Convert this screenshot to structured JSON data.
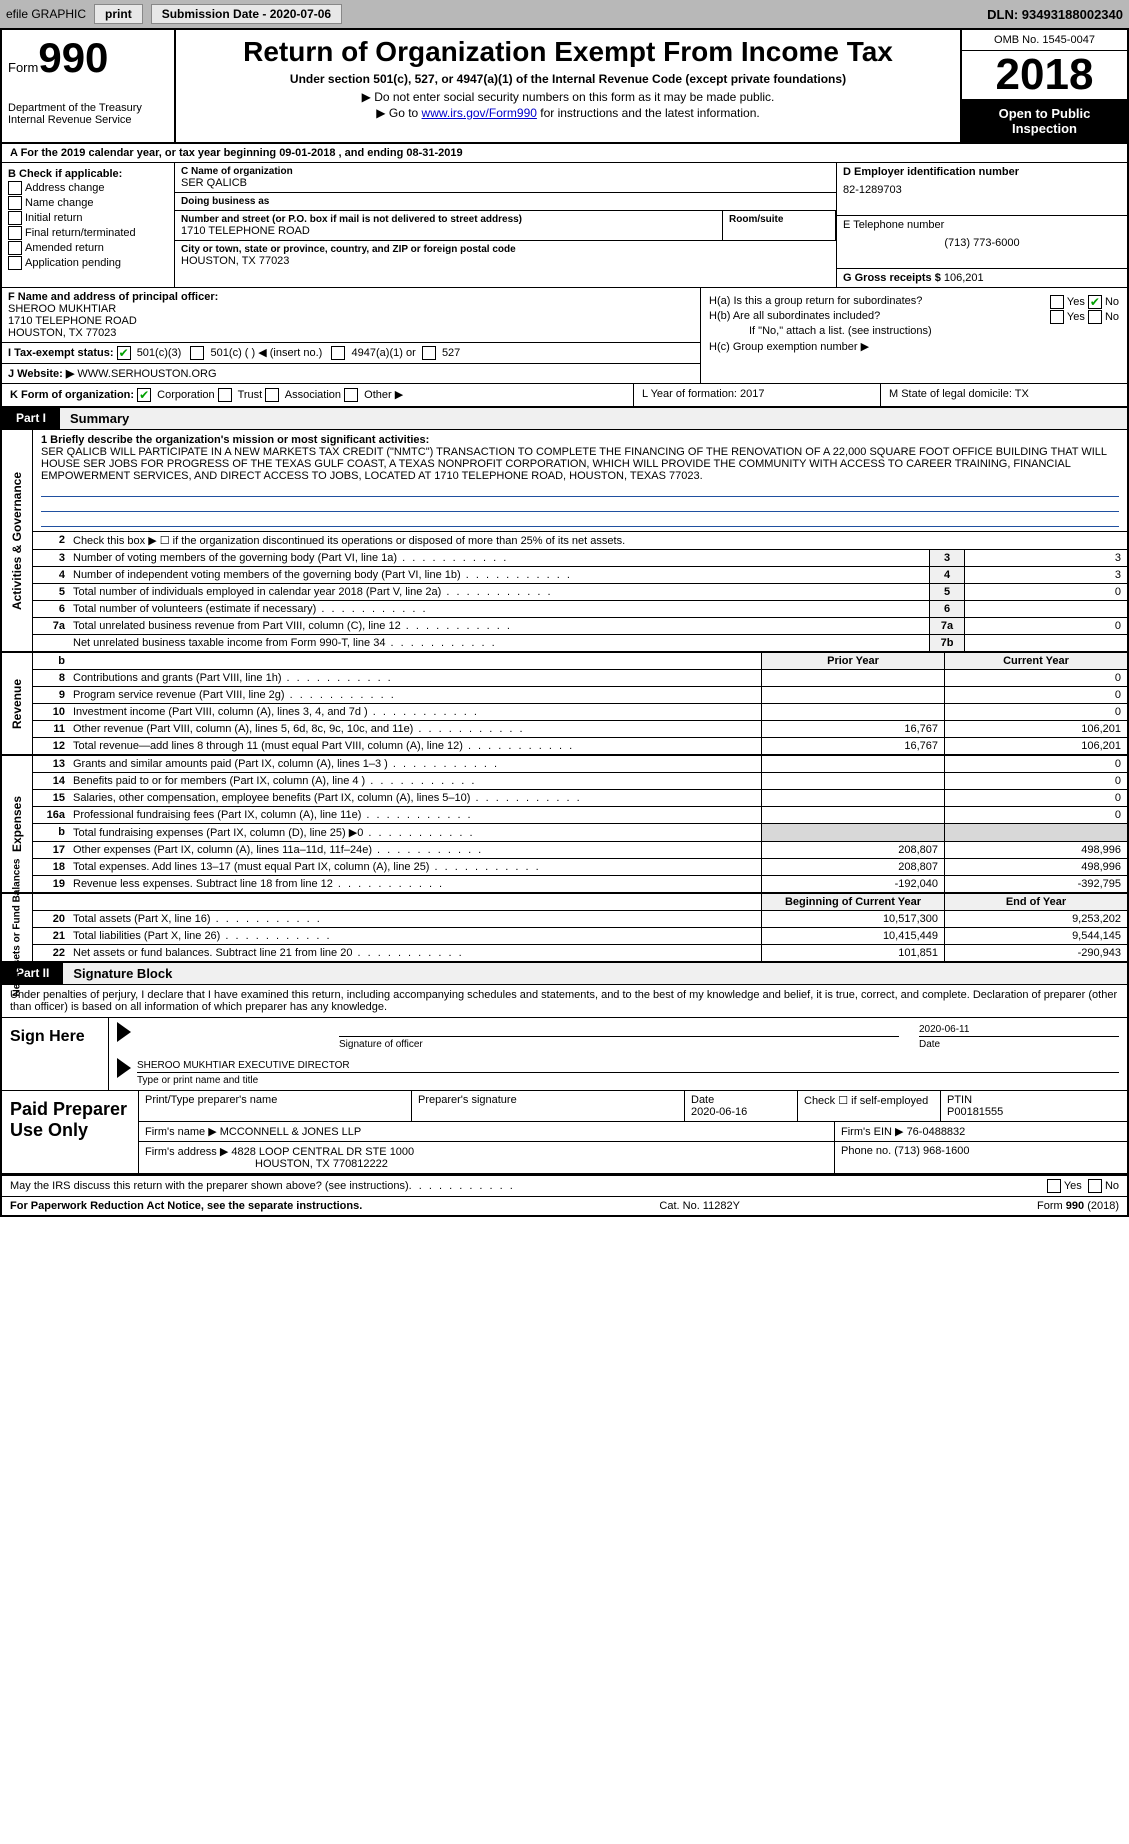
{
  "topbar": {
    "efile": "efile GRAPHIC",
    "print": "print",
    "submission_label": "Submission Date - 2020-07-06",
    "dln": "DLN: 93493188002340"
  },
  "header": {
    "form_word": "Form",
    "form_number": "990",
    "dept": "Department of the Treasury\nInternal Revenue Service",
    "title": "Return of Organization Exempt From Income Tax",
    "subtitle": "Under section 501(c), 527, or 4947(a)(1) of the Internal Revenue Code (except private foundations)",
    "note1": "▶ Do not enter social security numbers on this form as it may be made public.",
    "note2_pre": "▶ Go to ",
    "note2_link": "www.irs.gov/Form990",
    "note2_post": " for instructions and the latest information.",
    "omb": "OMB No. 1545-0047",
    "year": "2018",
    "inspection": "Open to Public Inspection"
  },
  "lineA": "A  For the 2019 calendar year, or tax year beginning 09-01-2018   , and ending 08-31-2019",
  "boxB": {
    "title": "B Check if applicable:",
    "items": [
      "Address change",
      "Name change",
      "Initial return",
      "Final return/terminated",
      "Amended return",
      "Application pending"
    ]
  },
  "boxC": {
    "label_name": "C Name of organization",
    "name": "SER QALICB",
    "dba_label": "Doing business as",
    "dba": "",
    "street_label": "Number and street (or P.O. box if mail is not delivered to street address)",
    "street": "1710 TELEPHONE ROAD",
    "room_label": "Room/suite",
    "city_label": "City or town, state or province, country, and ZIP or foreign postal code",
    "city": "HOUSTON, TX  77023"
  },
  "boxD": {
    "label": "D Employer identification number",
    "value": "82-1289703"
  },
  "boxE": {
    "label": "E Telephone number",
    "value": "(713) 773-6000"
  },
  "boxG": {
    "label": "G Gross receipts $",
    "value": "106,201"
  },
  "boxF": {
    "label": "F Name and address of principal officer:",
    "name": "SHEROO MUKHTIAR",
    "street": "1710 TELEPHONE ROAD",
    "city": "HOUSTON, TX  77023"
  },
  "boxH": {
    "a": "H(a)  Is this a group return for subordinates?",
    "b": "H(b)  Are all subordinates included?",
    "b_note": "If \"No,\" attach a list. (see instructions)",
    "c": "H(c)  Group exemption number ▶",
    "yes": "Yes",
    "no": "No"
  },
  "boxI": {
    "label": "I   Tax-exempt status:",
    "opts": [
      "501(c)(3)",
      "501(c) (   ) ◀ (insert no.)",
      "4947(a)(1) or",
      "527"
    ]
  },
  "boxJ": {
    "label": "J   Website: ▶",
    "value": "WWW.SERHOUSTON.ORG"
  },
  "boxK": {
    "label": "K Form of organization:",
    "opts": [
      "Corporation",
      "Trust",
      "Association",
      "Other ▶"
    ],
    "L": "L Year of formation: 2017",
    "M": "M State of legal domicile: TX"
  },
  "partI": {
    "tag": "Part I",
    "title": "Summary"
  },
  "mission": {
    "label": "1  Briefly describe the organization's mission or most significant activities:",
    "text": "SER QALICB WILL PARTICIPATE IN A NEW MARKETS TAX CREDIT (\"NMTC\") TRANSACTION TO COMPLETE THE FINANCING OF THE RENOVATION OF A 22,000 SQUARE FOOT OFFICE BUILDING THAT WILL HOUSE SER JOBS FOR PROGRESS OF THE TEXAS GULF COAST, A TEXAS NONPROFIT CORPORATION, WHICH WILL PROVIDE THE COMMUNITY WITH ACCESS TO CAREER TRAINING, FINANCIAL EMPOWERMENT SERVICES, AND DIRECT ACCESS TO JOBS, LOCATED AT 1710 TELEPHONE ROAD, HOUSTON, TEXAS 77023."
  },
  "governance": {
    "vlabel": "Activities & Governance",
    "line2": "Check this box ▶ ☐ if the organization discontinued its operations or disposed of more than 25% of its net assets.",
    "rows": [
      {
        "n": "3",
        "label": "Number of voting members of the governing body (Part VI, line 1a)",
        "col": "3",
        "val": "3"
      },
      {
        "n": "4",
        "label": "Number of independent voting members of the governing body (Part VI, line 1b)",
        "col": "4",
        "val": "3"
      },
      {
        "n": "5",
        "label": "Total number of individuals employed in calendar year 2018 (Part V, line 2a)",
        "col": "5",
        "val": "0"
      },
      {
        "n": "6",
        "label": "Total number of volunteers (estimate if necessary)",
        "col": "6",
        "val": ""
      },
      {
        "n": "7a",
        "label": "Total unrelated business revenue from Part VIII, column (C), line 12",
        "col": "7a",
        "val": "0"
      },
      {
        "n": "",
        "label": "Net unrelated business taxable income from Form 990-T, line 34",
        "col": "7b",
        "val": ""
      }
    ]
  },
  "revenue": {
    "vlabel": "Revenue",
    "header_prior": "Prior Year",
    "header_curr": "Current Year",
    "rows": [
      {
        "n": "8",
        "label": "Contributions and grants (Part VIII, line 1h)",
        "prior": "",
        "curr": "0"
      },
      {
        "n": "9",
        "label": "Program service revenue (Part VIII, line 2g)",
        "prior": "",
        "curr": "0"
      },
      {
        "n": "10",
        "label": "Investment income (Part VIII, column (A), lines 3, 4, and 7d )",
        "prior": "",
        "curr": "0"
      },
      {
        "n": "11",
        "label": "Other revenue (Part VIII, column (A), lines 5, 6d, 8c, 9c, 10c, and 11e)",
        "prior": "16,767",
        "curr": "106,201"
      },
      {
        "n": "12",
        "label": "Total revenue—add lines 8 through 11 (must equal Part VIII, column (A), line 12)",
        "prior": "16,767",
        "curr": "106,201"
      }
    ]
  },
  "expenses": {
    "vlabel": "Expenses",
    "rows": [
      {
        "n": "13",
        "label": "Grants and similar amounts paid (Part IX, column (A), lines 1–3 )",
        "prior": "",
        "curr": "0"
      },
      {
        "n": "14",
        "label": "Benefits paid to or for members (Part IX, column (A), line 4 )",
        "prior": "",
        "curr": "0"
      },
      {
        "n": "15",
        "label": "Salaries, other compensation, employee benefits (Part IX, column (A), lines 5–10)",
        "prior": "",
        "curr": "0"
      },
      {
        "n": "16a",
        "label": "Professional fundraising fees (Part IX, column (A), line 11e)",
        "prior": "",
        "curr": "0"
      },
      {
        "n": "b",
        "label": "Total fundraising expenses (Part IX, column (D), line 25) ▶0",
        "prior": "GREY",
        "curr": "GREY"
      },
      {
        "n": "17",
        "label": "Other expenses (Part IX, column (A), lines 11a–11d, 11f–24e)",
        "prior": "208,807",
        "curr": "498,996"
      },
      {
        "n": "18",
        "label": "Total expenses. Add lines 13–17 (must equal Part IX, column (A), line 25)",
        "prior": "208,807",
        "curr": "498,996"
      },
      {
        "n": "19",
        "label": "Revenue less expenses. Subtract line 18 from line 12",
        "prior": "-192,040",
        "curr": "-392,795"
      }
    ]
  },
  "netassets": {
    "vlabel": "Net Assets or Fund Balances",
    "header_prior": "Beginning of Current Year",
    "header_curr": "End of Year",
    "rows": [
      {
        "n": "20",
        "label": "Total assets (Part X, line 16)",
        "prior": "10,517,300",
        "curr": "9,253,202"
      },
      {
        "n": "21",
        "label": "Total liabilities (Part X, line 26)",
        "prior": "10,415,449",
        "curr": "9,544,145"
      },
      {
        "n": "22",
        "label": "Net assets or fund balances. Subtract line 21 from line 20",
        "prior": "101,851",
        "curr": "-290,943"
      }
    ]
  },
  "partII": {
    "tag": "Part II",
    "title": "Signature Block"
  },
  "sig": {
    "note": "Under penalties of perjury, I declare that I have examined this return, including accompanying schedules and statements, and to the best of my knowledge and belief, it is true, correct, and complete. Declaration of preparer (other than officer) is based on all information of which preparer has any knowledge.",
    "sign_here": "Sign Here",
    "sig_officer": "Signature of officer",
    "date": "2020-06-11",
    "date_label": "Date",
    "name_title": "SHEROO MUKHTIAR  EXECUTIVE DIRECTOR",
    "name_title_label": "Type or print name and title"
  },
  "paid": {
    "title": "Paid Preparer Use Only",
    "h_name": "Print/Type preparer's name",
    "h_sig": "Preparer's signature",
    "h_date": "Date",
    "date": "2020-06-16",
    "h_check": "Check ☐ if self-employed",
    "h_ptin": "PTIN",
    "ptin": "P00181555",
    "firm_name_label": "Firm's name      ▶",
    "firm_name": "MCCONNELL & JONES LLP",
    "firm_ein_label": "Firm's EIN ▶",
    "firm_ein": "76-0488832",
    "firm_addr_label": "Firm's address ▶",
    "firm_addr1": "4828 LOOP CENTRAL DR STE 1000",
    "firm_addr2": "HOUSTON, TX  770812222",
    "phone_label": "Phone no.",
    "phone": "(713) 968-1600"
  },
  "discuss": "May the IRS discuss this return with the preparer shown above? (see instructions)",
  "footer": {
    "left": "For Paperwork Reduction Act Notice, see the separate instructions.",
    "mid": "Cat. No. 11282Y",
    "right": "Form 990 (2018)"
  }
}
